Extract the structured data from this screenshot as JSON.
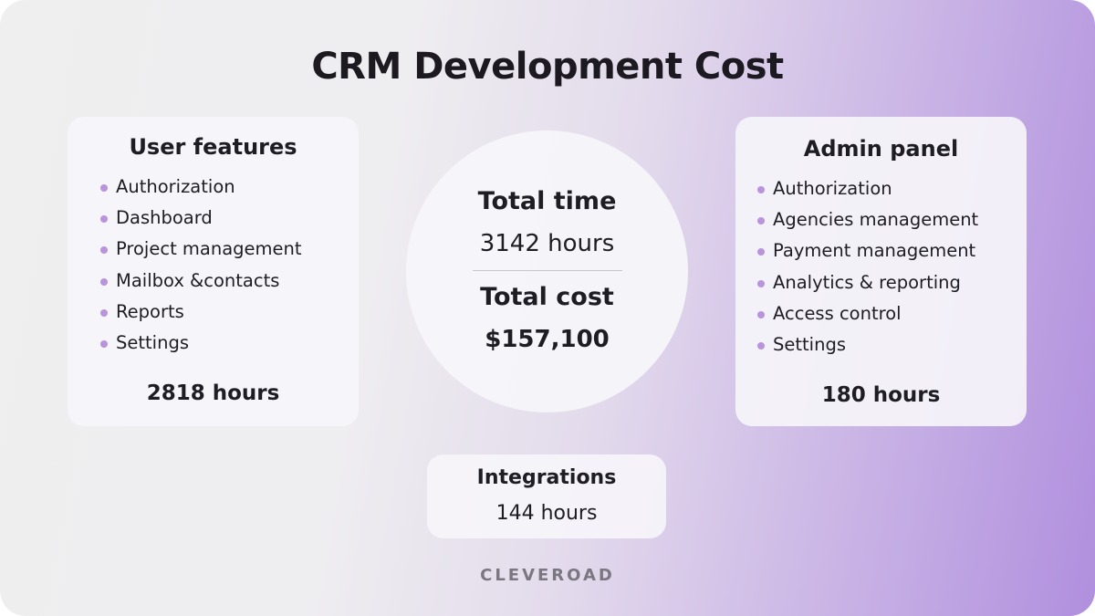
{
  "title": "CRM Development Cost",
  "user_features": {
    "title": "User features",
    "items": [
      "Authorization",
      "Dashboard",
      "Project management",
      "Mailbox &contacts",
      "Reports",
      "Settings"
    ],
    "hours": "2818 hours"
  },
  "summary": {
    "time_label": "Total time",
    "time_value": "3142 hours",
    "cost_label": "Total cost",
    "cost_value": "$157,100"
  },
  "admin_panel": {
    "title": "Admin panel",
    "items": [
      "Authorization",
      "Agencies management",
      "Payment management",
      "Analytics & reporting",
      "Access control",
      "Settings"
    ],
    "hours": "180 hours"
  },
  "integrations": {
    "title": "Integrations",
    "hours": "144 hours"
  },
  "brand": "CLEVEROAD",
  "colors": {
    "bullet": "#b794dc",
    "gradient_end": "#b08fde",
    "text": "#1f1d24"
  },
  "icons": {
    "bullet": "dot-icon"
  }
}
